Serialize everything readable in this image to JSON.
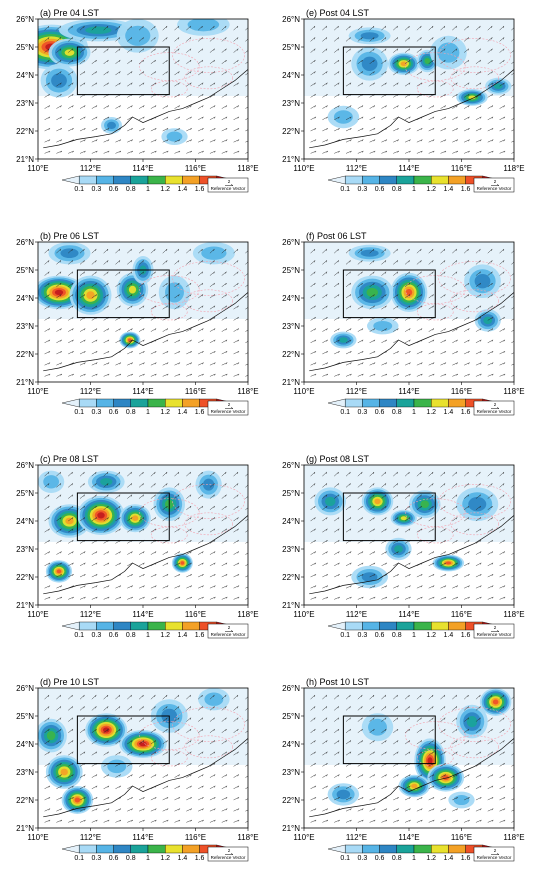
{
  "figure": {
    "lon_labels": [
      "110°E",
      "112°E",
      "114°E",
      "116°E",
      "118°E"
    ],
    "lat_labels": [
      "21°N",
      "22°N",
      "23°N",
      "24°N",
      "25°N",
      "26°N"
    ],
    "lon_range": [
      110,
      118
    ],
    "lat_range": [
      21,
      26
    ],
    "box": {
      "lon": [
        111.5,
        115
      ],
      "lat": [
        23.3,
        25
      ]
    },
    "colorbar": {
      "levels": [
        "0.1",
        "0.3",
        "0.6",
        "0.8",
        "1",
        "1.2",
        "1.4",
        "1.6",
        "1.8"
      ],
      "colors": [
        "#e4f1fa",
        "#a8daf6",
        "#56b4e6",
        "#2e86c4",
        "#1aa39a",
        "#3bb44a",
        "#e8e12e",
        "#f3a126",
        "#ee5128",
        "#c21b1d"
      ]
    },
    "reference_vector": {
      "value": "2",
      "label": "Reference Vector"
    }
  },
  "panels": [
    {
      "id": "a",
      "title": "(a) Pre 04 LST",
      "col": 0,
      "row": 0,
      "blobs": [
        [
          110.5,
          25,
          1.4,
          0.8,
          1.9
        ],
        [
          111.2,
          24.8,
          0.8,
          0.5,
          1.3
        ],
        [
          112.3,
          25.6,
          1.5,
          0.4,
          0.9
        ],
        [
          113.8,
          25.4,
          0.8,
          0.6,
          0.55
        ],
        [
          110.8,
          23.8,
          0.7,
          0.6,
          0.6
        ],
        [
          116.3,
          25.8,
          1.0,
          0.4,
          0.4
        ],
        [
          112.8,
          22.2,
          0.4,
          0.3,
          0.6
        ],
        [
          115.2,
          21.8,
          0.5,
          0.3,
          0.3
        ]
      ]
    },
    {
      "id": "e",
      "title": "(e) Post 04 LST",
      "col": 1,
      "row": 0,
      "blobs": [
        [
          112.5,
          24.4,
          0.7,
          0.6,
          0.7
        ],
        [
          113.8,
          24.4,
          0.6,
          0.4,
          1.5
        ],
        [
          114.7,
          24.5,
          0.4,
          0.4,
          1.0
        ],
        [
          112.5,
          25.4,
          0.8,
          0.3,
          0.6
        ],
        [
          116.4,
          23.2,
          0.6,
          0.3,
          1.2
        ],
        [
          117.4,
          23.6,
          0.5,
          0.3,
          0.8
        ],
        [
          115.5,
          24.8,
          0.7,
          0.6,
          0.5
        ],
        [
          111.5,
          22.5,
          0.6,
          0.4,
          0.5
        ]
      ]
    },
    {
      "id": "b",
      "title": "(b) Pre 06 LST",
      "col": 0,
      "row": 1,
      "blobs": [
        [
          110.8,
          24.2,
          1.0,
          0.6,
          1.9
        ],
        [
          112.0,
          24.1,
          0.8,
          0.7,
          1.5
        ],
        [
          113.6,
          24.3,
          0.6,
          0.6,
          1.3
        ],
        [
          114.0,
          25.0,
          0.4,
          0.5,
          0.9
        ],
        [
          111.2,
          25.6,
          0.8,
          0.4,
          0.6
        ],
        [
          113.5,
          22.5,
          0.4,
          0.3,
          1.6
        ],
        [
          115.2,
          24.2,
          0.6,
          0.6,
          0.5
        ],
        [
          116.7,
          25.6,
          0.8,
          0.4,
          0.45
        ]
      ]
    },
    {
      "id": "f",
      "title": "(f) Post 06 LST",
      "col": 1,
      "row": 1,
      "blobs": [
        [
          114.0,
          24.2,
          0.7,
          0.7,
          1.7
        ],
        [
          112.6,
          24.2,
          0.8,
          0.6,
          1.1
        ],
        [
          116.8,
          24.6,
          0.7,
          0.6,
          0.6
        ],
        [
          117.0,
          23.2,
          0.5,
          0.4,
          0.9
        ],
        [
          111.5,
          22.5,
          0.5,
          0.3,
          0.8
        ],
        [
          113.0,
          23.0,
          0.6,
          0.3,
          0.5
        ],
        [
          112.5,
          25.6,
          0.8,
          0.3,
          0.6
        ]
      ]
    },
    {
      "id": "c",
      "title": "(c) Pre 08 LST",
      "col": 0,
      "row": 2,
      "blobs": [
        [
          111.2,
          24.0,
          0.8,
          0.6,
          1.5
        ],
        [
          112.4,
          24.2,
          0.9,
          0.7,
          1.9
        ],
        [
          113.7,
          24.1,
          0.6,
          0.5,
          1.5
        ],
        [
          115.0,
          24.6,
          0.6,
          0.6,
          1.0
        ],
        [
          110.8,
          22.2,
          0.5,
          0.4,
          1.6
        ],
        [
          115.5,
          22.5,
          0.4,
          0.35,
          1.7
        ],
        [
          112.6,
          25.4,
          0.7,
          0.4,
          0.8
        ],
        [
          116.5,
          25.3,
          0.5,
          0.5,
          0.7
        ],
        [
          110.5,
          25.4,
          0.5,
          0.4,
          0.4
        ]
      ]
    },
    {
      "id": "g",
      "title": "(g) Post 08 LST",
      "col": 1,
      "row": 2,
      "blobs": [
        [
          112.8,
          24.7,
          0.6,
          0.5,
          1.5
        ],
        [
          114.6,
          24.6,
          0.6,
          0.5,
          1.1
        ],
        [
          113.8,
          24.1,
          0.5,
          0.3,
          1.2
        ],
        [
          111.0,
          24.7,
          0.6,
          0.5,
          0.9
        ],
        [
          115.5,
          22.5,
          0.6,
          0.3,
          1.7
        ],
        [
          116.6,
          24.6,
          0.8,
          0.6,
          0.6
        ],
        [
          112.5,
          22.0,
          0.7,
          0.4,
          0.6
        ],
        [
          113.6,
          23.0,
          0.5,
          0.4,
          0.9
        ]
      ]
    },
    {
      "id": "d",
      "title": "(d) Pre 10 LST",
      "col": 0,
      "row": 3,
      "blobs": [
        [
          112.6,
          24.5,
          0.8,
          0.6,
          1.9
        ],
        [
          114.0,
          24.0,
          0.9,
          0.5,
          1.8
        ],
        [
          111.0,
          23.0,
          0.7,
          0.6,
          1.4
        ],
        [
          111.5,
          22.0,
          0.6,
          0.5,
          1.7
        ],
        [
          110.5,
          24.3,
          0.6,
          0.6,
          1.0
        ],
        [
          115.0,
          25.0,
          0.7,
          0.6,
          0.6
        ],
        [
          113.0,
          23.2,
          0.6,
          0.4,
          0.5
        ],
        [
          116.7,
          25.6,
          0.6,
          0.4,
          0.5
        ]
      ]
    },
    {
      "id": "h",
      "title": "(h) Post 10 LST",
      "col": 1,
      "row": 3,
      "blobs": [
        [
          114.8,
          23.4,
          0.6,
          0.8,
          1.8
        ],
        [
          115.4,
          22.8,
          0.7,
          0.5,
          1.7
        ],
        [
          114.2,
          22.5,
          0.6,
          0.4,
          1.4
        ],
        [
          117.3,
          25.5,
          0.6,
          0.5,
          1.7
        ],
        [
          116.4,
          24.8,
          0.6,
          0.6,
          0.8
        ],
        [
          111.5,
          22.2,
          0.6,
          0.4,
          0.6
        ],
        [
          112.8,
          24.6,
          0.6,
          0.5,
          0.45
        ],
        [
          116.0,
          22.0,
          0.5,
          0.3,
          0.5
        ]
      ]
    }
  ]
}
